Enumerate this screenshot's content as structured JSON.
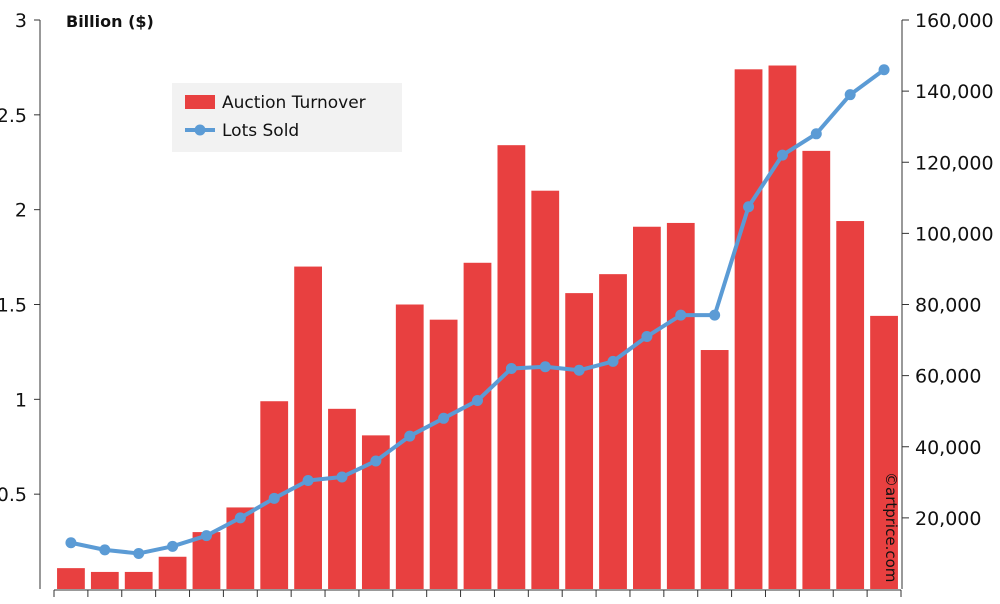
{
  "chart_data": {
    "type": "bar",
    "ylabel": "Billion ($)",
    "ylim": [
      0,
      3
    ],
    "y2lim": [
      0,
      160000
    ],
    "yticks": [
      "0.5",
      "1",
      "1.5",
      "2",
      "2.5",
      "3"
    ],
    "y2ticks": [
      "20,000",
      "40,000",
      "60,000",
      "80,000",
      "100,000",
      "120,000",
      "140,000",
      "160,000"
    ],
    "legend_position": "top-left",
    "grid": false,
    "colors": {
      "bars": "#e84040",
      "line": "#5b9bd5"
    },
    "series": [
      {
        "name": "Auction Turnover",
        "kind": "bar",
        "axis": "left",
        "values": [
          0.11,
          0.09,
          0.09,
          0.17,
          0.3,
          0.43,
          0.99,
          1.7,
          0.95,
          0.81,
          1.5,
          1.42,
          1.72,
          2.34,
          2.1,
          1.56,
          1.66,
          1.91,
          1.93,
          1.26,
          2.74,
          2.76,
          2.31,
          1.94,
          1.44
        ]
      },
      {
        "name": "Lots Sold",
        "kind": "line",
        "axis": "right",
        "values": [
          13000,
          11000,
          10000,
          12000,
          15000,
          20000,
          25500,
          30500,
          31500,
          36000,
          43000,
          48000,
          53000,
          62000,
          62500,
          61500,
          64000,
          71000,
          77000,
          77000,
          107500,
          122000,
          128000,
          139000,
          146000
        ]
      }
    ]
  },
  "credit": "©artprice.com"
}
